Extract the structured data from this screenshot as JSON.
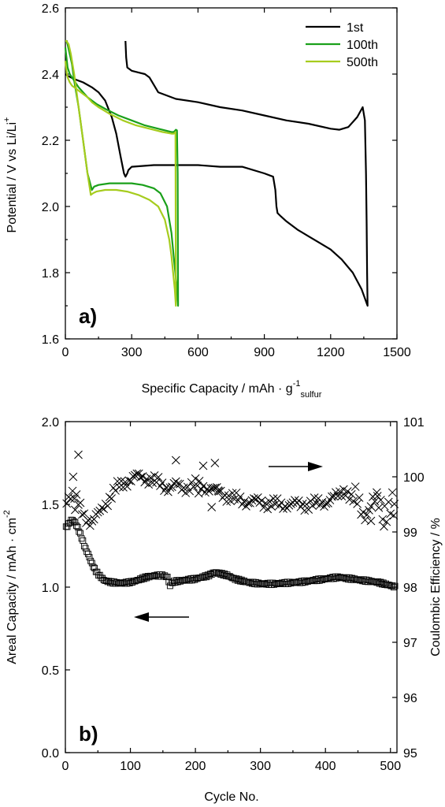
{
  "chart_data": [
    {
      "type": "line",
      "panel_label": "a)",
      "xlabel": "Specific Capacity / mAh · g",
      "xlabel_sup": "-1",
      "xlabel_sub": "sulfur",
      "ylabel": "Potential / V vs Li/Li",
      "ylabel_sup": "+",
      "xlim": [
        0,
        1500
      ],
      "ylim": [
        1.6,
        2.6
      ],
      "xticks": [
        0,
        300,
        600,
        900,
        1200,
        1500
      ],
      "yticks": [
        1.6,
        1.8,
        2.0,
        2.2,
        2.4,
        2.6
      ],
      "legend_position": "top-right",
      "series": [
        {
          "name": "1st",
          "color": "#000000",
          "x": [
            272,
            275,
            280,
            300,
            330,
            360,
            380,
            420,
            500,
            600,
            700,
            800,
            900,
            1000,
            1100,
            1200,
            1240,
            1280,
            1320,
            1345,
            1355,
            1360,
            1363,
            1365,
            1367,
            1340,
            1300,
            1250,
            1200,
            1150,
            1100,
            1050,
            1000,
            975,
            960,
            955,
            950,
            940,
            900,
            800,
            700,
            600,
            500,
            400,
            300,
            285,
            280,
            272,
            265,
            250,
            230,
            210,
            180,
            150,
            120,
            80,
            40,
            10,
            0
          ],
          "y": [
            2.5,
            2.45,
            2.42,
            2.41,
            2.405,
            2.4,
            2.39,
            2.345,
            2.325,
            2.315,
            2.3,
            2.29,
            2.275,
            2.26,
            2.25,
            2.235,
            2.232,
            2.24,
            2.27,
            2.3,
            2.26,
            2.1,
            1.95,
            1.8,
            1.7,
            1.75,
            1.8,
            1.84,
            1.87,
            1.89,
            1.91,
            1.93,
            1.955,
            1.97,
            1.98,
            2.0,
            2.05,
            2.09,
            2.1,
            2.12,
            2.12,
            2.125,
            2.125,
            2.125,
            2.12,
            2.11,
            2.1,
            2.09,
            2.1,
            2.15,
            2.22,
            2.27,
            2.32,
            2.345,
            2.36,
            2.375,
            2.385,
            2.395,
            2.4
          ]
        },
        {
          "name": "100th",
          "color": "#1aa01a",
          "x": [
            0,
            5,
            10,
            20,
            30,
            40,
            60,
            80,
            100,
            120,
            140,
            180,
            240,
            300,
            360,
            420,
            480,
            490,
            495,
            500,
            505,
            508,
            510,
            505,
            490,
            480,
            460,
            430,
            400,
            350,
            300,
            250,
            200,
            150,
            130,
            120,
            100,
            80,
            60,
            40,
            30,
            20,
            10,
            5,
            0
          ],
          "y": [
            2.48,
            2.45,
            2.42,
            2.4,
            2.39,
            2.38,
            2.36,
            2.345,
            2.33,
            2.32,
            2.31,
            2.295,
            2.275,
            2.26,
            2.245,
            2.235,
            2.225,
            2.225,
            2.228,
            2.232,
            2.23,
            2.1,
            1.7,
            1.75,
            1.85,
            1.92,
            2.0,
            2.04,
            2.055,
            2.065,
            2.07,
            2.07,
            2.07,
            2.065,
            2.06,
            2.05,
            2.1,
            2.2,
            2.3,
            2.38,
            2.43,
            2.46,
            2.49,
            2.5,
            2.5
          ]
        },
        {
          "name": "500th",
          "color": "#a6cc1e",
          "x": [
            0,
            5,
            10,
            20,
            30,
            40,
            60,
            80,
            100,
            120,
            150,
            200,
            260,
            320,
            380,
            440,
            480,
            490,
            495,
            498,
            500,
            495,
            480,
            470,
            450,
            420,
            380,
            330,
            280,
            230,
            180,
            140,
            125,
            115,
            100,
            80,
            60,
            40,
            25,
            15,
            5,
            0
          ],
          "y": [
            2.44,
            2.41,
            2.39,
            2.375,
            2.365,
            2.36,
            2.35,
            2.34,
            2.33,
            2.315,
            2.3,
            2.28,
            2.26,
            2.245,
            2.235,
            2.225,
            2.22,
            2.22,
            2.222,
            2.225,
            1.7,
            1.75,
            1.85,
            1.9,
            1.96,
            2.0,
            2.02,
            2.035,
            2.045,
            2.05,
            2.05,
            2.045,
            2.04,
            2.035,
            2.1,
            2.2,
            2.3,
            2.4,
            2.46,
            2.49,
            2.5,
            2.5
          ]
        }
      ]
    },
    {
      "type": "scatter",
      "panel_label": "b)",
      "xlabel": "Cycle No.",
      "ylabel": "Areal Capacity / mAh · cm",
      "ylabel_sup": "-2",
      "y2label": "Coulombic Efficiency / %",
      "xlim": [
        0,
        510
      ],
      "ylim": [
        0.0,
        2.0
      ],
      "y2lim": [
        95,
        101
      ],
      "xticks": [
        0,
        100,
        200,
        300,
        400,
        500
      ],
      "yticks": [
        0.0,
        0.5,
        1.0,
        1.5,
        2.0
      ],
      "y2ticks": [
        95,
        96,
        97,
        98,
        99,
        100,
        101
      ],
      "series": [
        {
          "name": "Areal Capacity",
          "axis": "left",
          "marker": "square",
          "anchor_x": [
            1,
            5,
            10,
            15,
            20,
            25,
            30,
            35,
            40,
            45,
            50,
            55,
            60,
            70,
            80,
            90,
            100,
            110,
            120,
            130,
            140,
            150,
            158,
            160,
            162,
            165,
            170,
            180,
            190,
            200,
            210,
            220,
            225,
            230,
            240,
            250,
            260,
            280,
            300,
            320,
            340,
            360,
            380,
            400,
            420,
            440,
            460,
            480,
            500,
            508
          ],
          "anchor_y": [
            1.36,
            1.38,
            1.41,
            1.39,
            1.35,
            1.3,
            1.24,
            1.2,
            1.15,
            1.11,
            1.08,
            1.06,
            1.04,
            1.03,
            1.025,
            1.025,
            1.03,
            1.04,
            1.055,
            1.065,
            1.07,
            1.07,
            1.06,
            1.0,
            1.02,
            1.03,
            1.035,
            1.04,
            1.045,
            1.05,
            1.06,
            1.07,
            1.08,
            1.09,
            1.08,
            1.07,
            1.05,
            1.03,
            1.02,
            1.02,
            1.025,
            1.03,
            1.04,
            1.05,
            1.06,
            1.05,
            1.04,
            1.03,
            1.01,
            1.0
          ]
        },
        {
          "name": "Coulombic Efficiency",
          "axis": "right",
          "marker": "x",
          "anchor_x": [
            1,
            10,
            20,
            30,
            40,
            50,
            60,
            70,
            80,
            90,
            100,
            110,
            120,
            130,
            140,
            150,
            160,
            170,
            180,
            200,
            220,
            240,
            260,
            280,
            300,
            320,
            340,
            360,
            380,
            400,
            420,
            430,
            440,
            460,
            480,
            500,
            508
          ],
          "anchor_y": [
            99.6,
            99.7,
            99.5,
            99.3,
            99.15,
            99.3,
            99.5,
            99.65,
            99.8,
            99.9,
            99.95,
            100.0,
            100.0,
            99.95,
            99.9,
            99.85,
            99.8,
            99.85,
            99.8,
            99.85,
            99.8,
            99.7,
            99.6,
            99.55,
            99.55,
            99.5,
            99.5,
            99.5,
            99.5,
            99.55,
            99.65,
            99.8,
            99.6,
            99.4,
            99.5,
            99.45,
            99.5
          ],
          "outliers": [
            [
              20,
              100.4
            ],
            [
              12,
              100.0
            ],
            [
              15,
              99.4
            ],
            [
              170,
              100.3
            ],
            [
              205,
              99.7
            ],
            [
              212,
              100.2
            ],
            [
              230,
              100.25
            ],
            [
              225,
              99.45
            ],
            [
              235,
              99.75
            ],
            [
              470,
              99.2
            ],
            [
              490,
              99.1
            ],
            [
              505,
              99.3
            ],
            [
              480,
              99.65
            ]
          ]
        }
      ],
      "arrows": [
        {
          "direction": "right",
          "points_to": "right axis"
        },
        {
          "direction": "left",
          "points_to": "left axis"
        }
      ]
    }
  ]
}
